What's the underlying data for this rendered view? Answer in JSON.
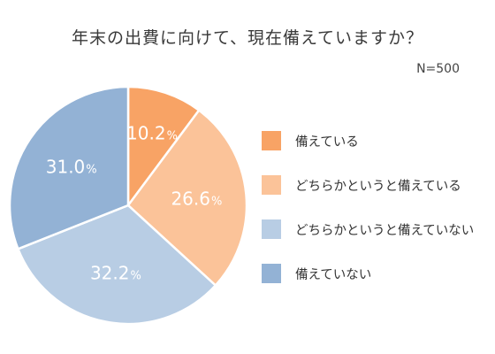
{
  "chart_data": {
    "type": "pie",
    "title": "年末の出費に向けて、現在備えていますか？",
    "note": "N=500",
    "unit": "%",
    "slices": [
      {
        "label": "備えている",
        "value": 10.2,
        "color": "#f8a365"
      },
      {
        "label": "どちらかというと備えている",
        "value": 26.6,
        "color": "#fbc399"
      },
      {
        "label": "どちらかというと備えていない",
        "value": 32.2,
        "color": "#b8cde4"
      },
      {
        "label": "備えていない",
        "value": 31.0,
        "color": "#93b2d5"
      }
    ],
    "legend_position": "right",
    "start_angle": "top",
    "direction": "clockwise"
  }
}
